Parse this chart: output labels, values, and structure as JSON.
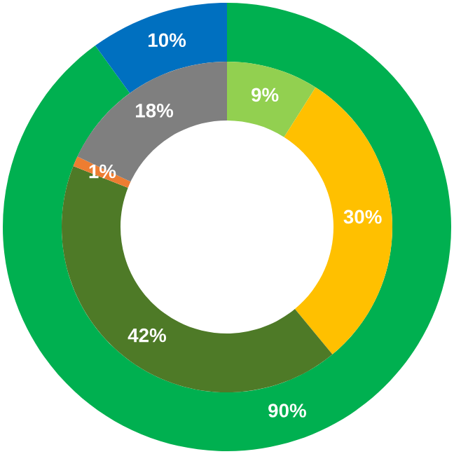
{
  "chart_data": {
    "type": "donut",
    "series": [
      {
        "values": [
          90,
          10
        ],
        "colors": [
          "#00b050",
          "#0070c0"
        ],
        "value_labels": [
          "90%",
          "10%"
        ]
      },
      {
        "values": [
          9,
          30,
          42,
          1,
          18
        ],
        "colors": [
          "#92d050",
          "#ffc000",
          "#4e7a27",
          "#ed7d31",
          "#7f7f7f"
        ],
        "value_labels": [
          "9%",
          "30%",
          "42%",
          "1%",
          "18%"
        ]
      }
    ],
    "legend": false
  }
}
